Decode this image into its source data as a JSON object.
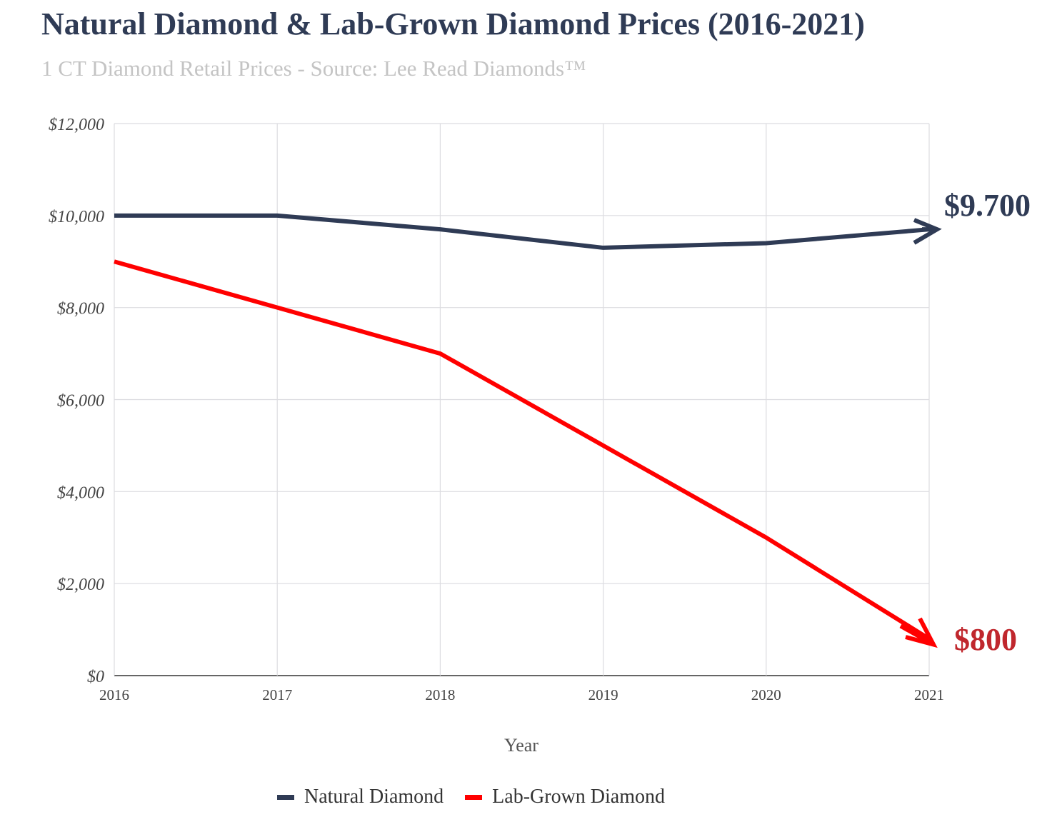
{
  "chart_data": {
    "type": "line",
    "title": "Natural Diamond & Lab-Grown Diamond Prices (2016-2021)",
    "subtitle": "1 CT Diamond Retail Prices - Source: Lee Read Diamonds™",
    "xlabel": "Year",
    "ylabel": "",
    "x": [
      "2016",
      "2017",
      "2018",
      "2019",
      "2020",
      "2021"
    ],
    "ylim": [
      0,
      12000
    ],
    "yticks": [
      "$0",
      "$2,000",
      "$4,000",
      "$6,000",
      "$8,000",
      "$10,000",
      "$12,000"
    ],
    "grid": true,
    "legend_position": "bottom",
    "series": [
      {
        "name": "Natural Diamond",
        "color": "#2f3b55",
        "values": [
          10000,
          10000,
          9700,
          9300,
          9400,
          9700
        ]
      },
      {
        "name": "Lab-Grown Diamond",
        "color": "#ff0000",
        "values": [
          9000,
          8000,
          7000,
          5000,
          3000,
          800
        ]
      }
    ],
    "annotations": [
      {
        "text": "$9.700",
        "series": "Natural Diamond",
        "color": "#2f3b55"
      },
      {
        "text": "$800",
        "series": "Lab-Grown Diamond",
        "color": "#c0272d"
      }
    ]
  }
}
